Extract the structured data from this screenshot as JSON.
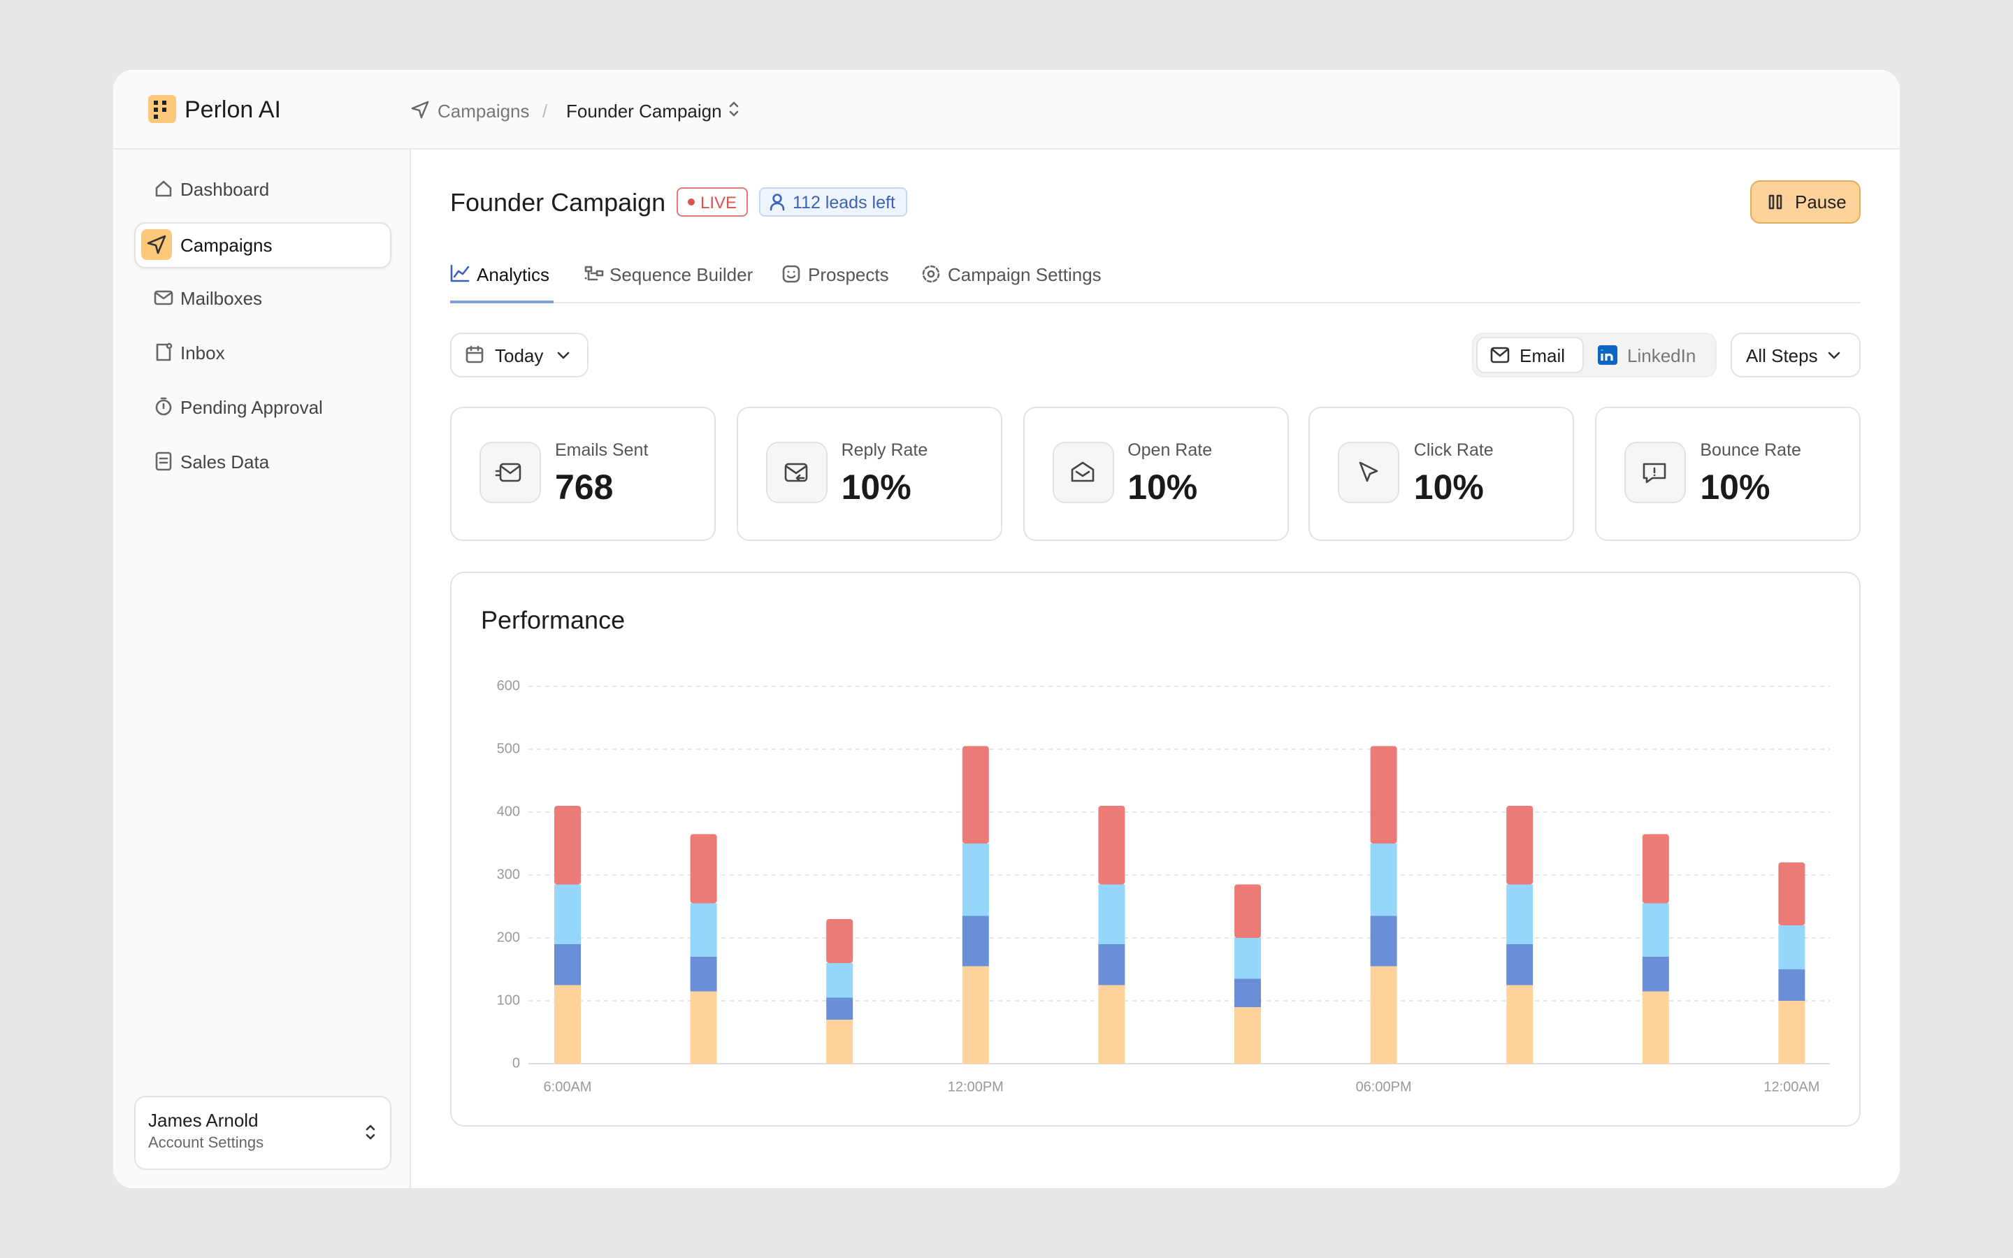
{
  "header": {
    "app_name": "Perlon AI",
    "breadcrumb": [
      "Campaigns",
      "Founder Campaign"
    ],
    "separator": "/"
  },
  "sidebar": {
    "items": [
      "Dashboard",
      "Campaigns",
      "Mailboxes",
      "Inbox",
      "Pending Approval",
      "Sales Data"
    ],
    "active": 1,
    "user": {
      "name": "James Arnold",
      "subtitle": "Account Settings"
    }
  },
  "content": {
    "title": "Founder Campaign",
    "status": "LIVE",
    "leads": "112 leads left",
    "pause": "Pause",
    "tabs": [
      "Analytics",
      "Sequence Builder",
      "Prospects",
      "Campaign Settings"
    ],
    "filters": {
      "date": "Today",
      "channels": [
        "Email",
        "LinkedIn"
      ],
      "steps": "All Steps"
    },
    "stats": [
      {
        "label": "Emails Sent",
        "value": "768"
      },
      {
        "label": "Reply Rate",
        "value": "10%"
      },
      {
        "label": "Open Rate",
        "value": "10%"
      },
      {
        "label": "Click Rate",
        "value": "10%"
      },
      {
        "label": "Bounce Rate",
        "value": "10%"
      }
    ]
  },
  "chart_data": {
    "type": "stacked_bar",
    "title": "Performance",
    "categories": [
      "6:00AM",
      null,
      null,
      "12:00PM",
      null,
      null,
      "06:00PM",
      null,
      null,
      "12:00AM"
    ],
    "series": [
      {
        "color": "#fdd39b",
        "values": [
          125,
          115,
          70,
          155,
          125,
          90,
          155,
          125,
          115,
          100
        ]
      },
      {
        "color": "#6a8fd8",
        "values": [
          65,
          55,
          35,
          80,
          65,
          45,
          80,
          65,
          55,
          50
        ]
      },
      {
        "color": "#95d6fb",
        "values": [
          95,
          85,
          55,
          115,
          95,
          65,
          115,
          95,
          85,
          70
        ]
      },
      {
        "color": "#ec7a76",
        "values": [
          125,
          110,
          70,
          155,
          125,
          85,
          155,
          125,
          110,
          100
        ]
      }
    ],
    "ylim": [
      0,
      600
    ],
    "yticks": [
      0,
      100,
      200,
      300,
      400,
      500,
      600
    ],
    "grid": true
  }
}
